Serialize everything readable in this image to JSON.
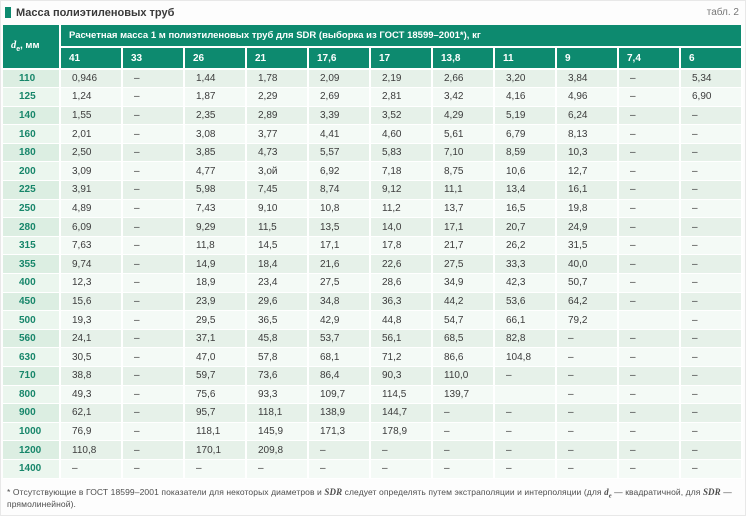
{
  "header": {
    "title": "Масса полиэтиленовых труб",
    "table_label": "табл. 2",
    "marker_color": "#0d8a6f"
  },
  "table": {
    "corner_main": "d",
    "corner_sub": "е",
    "corner_unit": ", мм",
    "span_header": "Расчетная масса 1 м полиэтиленовых труб для SDR (выборка из ГОСТ 18599–2001*), кг",
    "sdr_columns": [
      "41",
      "33",
      "26",
      "21",
      "17,6",
      "17",
      "13,8",
      "11",
      "9",
      "7,4",
      "6"
    ],
    "rows": [
      {
        "d": "110",
        "values": [
          "0,946",
          "–",
          "1,44",
          "1,78",
          "2,09",
          "2,19",
          "2,66",
          "3,20",
          "3,84",
          "–",
          "5,34"
        ]
      },
      {
        "d": "125",
        "values": [
          "1,24",
          "–",
          "1,87",
          "2,29",
          "2,69",
          "2,81",
          "3,42",
          "4,16",
          "4,96",
          "–",
          "6,90"
        ]
      },
      {
        "d": "140",
        "values": [
          "1,55",
          "–",
          "2,35",
          "2,89",
          "3,39",
          "3,52",
          "4,29",
          "5,19",
          "6,24",
          "–",
          "–"
        ]
      },
      {
        "d": "160",
        "values": [
          "2,01",
          "–",
          "3,08",
          "3,77",
          "4,41",
          "4,60",
          "5,61",
          "6,79",
          "8,13",
          "–",
          "–"
        ]
      },
      {
        "d": "180",
        "values": [
          "2,50",
          "–",
          "3,85",
          "4,73",
          "5,57",
          "5,83",
          "7,10",
          "8,59",
          "10,3",
          "–",
          "–"
        ]
      },
      {
        "d": "200",
        "values": [
          "3,09",
          "–",
          "4,77",
          "3,ой",
          "6,92",
          "7,18",
          "8,75",
          "10,6",
          "12,7",
          "–",
          "–"
        ]
      },
      {
        "d": "225",
        "values": [
          "3,91",
          "–",
          "5,98",
          "7,45",
          "8,74",
          "9,12",
          "11,1",
          "13,4",
          "16,1",
          "–",
          "–"
        ]
      },
      {
        "d": "250",
        "values": [
          "4,89",
          "–",
          "7,43",
          "9,10",
          "10,8",
          "11,2",
          "13,7",
          "16,5",
          "19,8",
          "–",
          "–"
        ]
      },
      {
        "d": "280",
        "values": [
          "6,09",
          "–",
          "9,29",
          "11,5",
          "13,5",
          "14,0",
          "17,1",
          "20,7",
          "24,9",
          "–",
          "–"
        ]
      },
      {
        "d": "315",
        "values": [
          "7,63",
          "–",
          "11,8",
          "14,5",
          "17,1",
          "17,8",
          "21,7",
          "26,2",
          "31,5",
          "–",
          "–"
        ]
      },
      {
        "d": "355",
        "values": [
          "9,74",
          "–",
          "14,9",
          "18,4",
          "21,6",
          "22,6",
          "27,5",
          "33,3",
          "40,0",
          "–",
          "–"
        ]
      },
      {
        "d": "400",
        "values": [
          "12,3",
          "–",
          "18,9",
          "23,4",
          "27,5",
          "28,6",
          "34,9",
          "42,3",
          "50,7",
          "–",
          "–"
        ]
      },
      {
        "d": "450",
        "values": [
          "15,6",
          "–",
          "23,9",
          "29,6",
          "34,8",
          "36,3",
          "44,2",
          "53,6",
          "64,2",
          "–",
          "–"
        ]
      },
      {
        "d": "500",
        "values": [
          "19,3",
          "–",
          "29,5",
          "36,5",
          "42,9",
          "44,8",
          "54,7",
          "66,1",
          "79,2",
          "",
          "–"
        ]
      },
      {
        "d": "560",
        "values": [
          "24,1",
          "–",
          "37,1",
          "45,8",
          "53,7",
          "56,1",
          "68,5",
          "82,8",
          "–",
          "–",
          "–"
        ]
      },
      {
        "d": "630",
        "values": [
          "30,5",
          "–",
          "47,0",
          "57,8",
          "68,1",
          "71,2",
          "86,6",
          "104,8",
          "–",
          "–",
          "–"
        ]
      },
      {
        "d": "710",
        "values": [
          "38,8",
          "–",
          "59,7",
          "73,6",
          "86,4",
          "90,3",
          "110,0",
          "–",
          "–",
          "–",
          "–"
        ]
      },
      {
        "d": "800",
        "values": [
          "49,3",
          "–",
          "75,6",
          "93,3",
          "109,7",
          "114,5",
          "139,7",
          "",
          "–",
          "–",
          "–"
        ]
      },
      {
        "d": "900",
        "values": [
          "62,1",
          "–",
          "95,7",
          "118,1",
          "138,9",
          "144,7",
          "–",
          "–",
          "–",
          "–",
          "–"
        ]
      },
      {
        "d": "1000",
        "values": [
          "76,9",
          "–",
          "118,1",
          "145,9",
          "171,3",
          "178,9",
          "–",
          "–",
          "–",
          "–",
          "–"
        ]
      },
      {
        "d": "1200",
        "values": [
          "110,8",
          "–",
          "170,1",
          "209,8",
          "–",
          "–",
          "–",
          "–",
          "–",
          "–",
          "–"
        ]
      },
      {
        "d": "1400",
        "values": [
          "–",
          "–",
          "–",
          "–",
          "–",
          "–",
          "–",
          "–",
          "–",
          "–",
          "–"
        ]
      }
    ]
  },
  "footnote": {
    "segments": [
      {
        "text": "* Отсутствующие в ГОСТ 18599–2001 показатели для некоторых диаметров и "
      },
      {
        "text": "SDR",
        "bold": true
      },
      {
        "text": " следует определять путем экстраполяции и интерполяции (для "
      },
      {
        "text": "d",
        "bold": true
      },
      {
        "text": "е",
        "bold": true,
        "sub": true
      },
      {
        "text": " — квадратичной, для "
      },
      {
        "text": "SDR",
        "bold": true
      },
      {
        "text": " — прямолинейной)."
      }
    ]
  },
  "colors": {
    "header_teal": "#0d8a6f",
    "row_green": "#e6f1e9",
    "row_light": "#f4faf6",
    "diameter_text": "#17866a"
  }
}
